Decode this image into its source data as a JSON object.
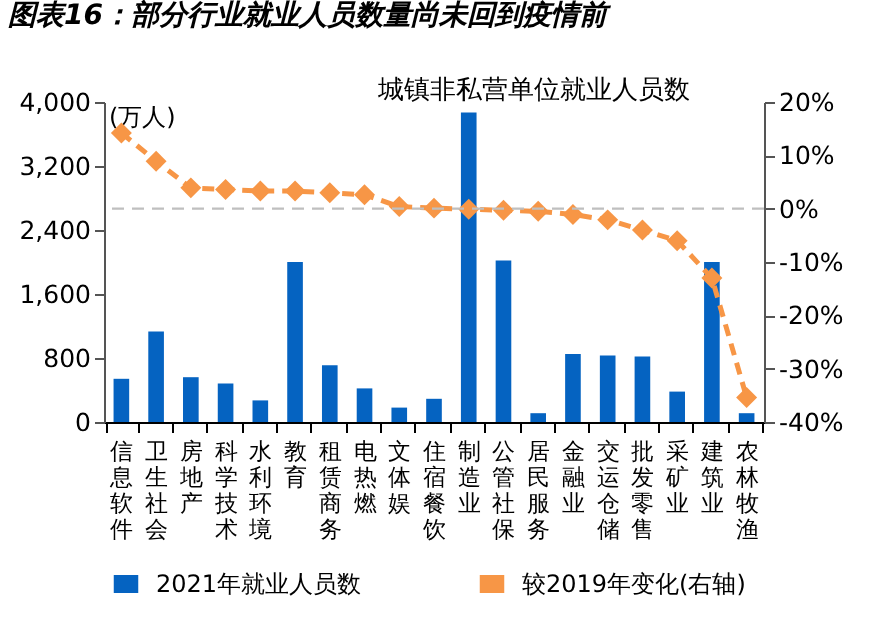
{
  "chart_data": {
    "type": "bar",
    "title": "图表16：部分行业就业人员数量尚未回到疫情前",
    "subtitle": "城镇非私营单位就业人员数",
    "ylabel": "(万人)",
    "categories": [
      "信息软件",
      "卫生社会",
      "房地产",
      "科学技术",
      "水利环境",
      "教育",
      "租赁商务",
      "电热燃",
      "文体娱",
      "住宿餐饮",
      "制造业",
      "公管社保",
      "居民服务",
      "金融业",
      "交运仓储",
      "批发零售",
      "采矿业",
      "建筑业",
      "农林牧渔"
    ],
    "series": [
      {
        "name": "2021年就业人员数",
        "color": "#0563c1",
        "values": [
          540,
          1130,
          560,
          480,
          270,
          2000,
          710,
          420,
          180,
          290,
          3870,
          2020,
          110,
          850,
          830,
          820,
          380,
          2000,
          110
        ]
      },
      {
        "name": "较2019年变化(右轴)",
        "type": "line",
        "axis": "y2",
        "color": "#f79646",
        "values": [
          14.2,
          8.9,
          3.9,
          3.6,
          3.3,
          3.3,
          3.0,
          2.6,
          0.4,
          0.1,
          -0.1,
          -0.3,
          -0.5,
          -1.1,
          -2.1,
          -4.0,
          -6.0,
          -13.0,
          -35.4
        ]
      }
    ],
    "ylim": [
      0,
      4000
    ],
    "yticks": [
      {
        "value": 0,
        "label": "0"
      },
      {
        "value": 800,
        "label": "800"
      },
      {
        "value": 1600,
        "label": "1,600"
      },
      {
        "value": 2400,
        "label": "2,400"
      },
      {
        "value": 3200,
        "label": "3,200"
      },
      {
        "value": 4000,
        "label": "4,000"
      }
    ],
    "y2lim": [
      -40,
      20
    ],
    "y2ticks": [
      {
        "value": -40,
        "label": "-40%"
      },
      {
        "value": -30,
        "label": "-30%"
      },
      {
        "value": -20,
        "label": "-20%"
      },
      {
        "value": -10,
        "label": "-10%"
      },
      {
        "value": 0,
        "label": "0%"
      },
      {
        "value": 10,
        "label": "10%"
      },
      {
        "value": 20,
        "label": "20%"
      }
    ],
    "ref_lines": [
      {
        "axis": "y2",
        "value": 0,
        "color": "#bfbfbf",
        "line_style": "dashed"
      }
    ],
    "marker": "diamond",
    "line_style": "dashed",
    "legend": "bottom"
  }
}
